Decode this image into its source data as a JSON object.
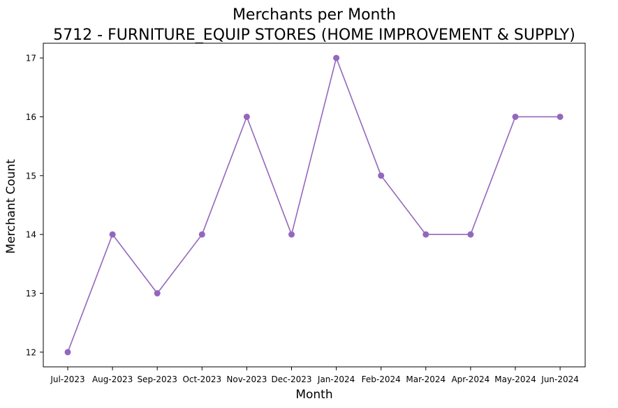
{
  "chart_data": {
    "type": "line",
    "title": "Merchants per Month",
    "subtitle": "5712 - FURNITURE_EQUIP STORES (HOME IMPROVEMENT & SUPPLY)",
    "xlabel": "Month",
    "ylabel": "Merchant Count",
    "categories": [
      "Jul-2023",
      "Aug-2023",
      "Sep-2023",
      "Oct-2023",
      "Nov-2023",
      "Dec-2023",
      "Jan-2024",
      "Feb-2024",
      "Mar-2024",
      "Apr-2024",
      "May-2024",
      "Jun-2024"
    ],
    "values": [
      12,
      14,
      13,
      14,
      16,
      14,
      17,
      15,
      14,
      14,
      16,
      16
    ],
    "yticks": [
      12,
      13,
      14,
      15,
      16,
      17
    ],
    "ylim": [
      11.75,
      17.25
    ],
    "grid": false,
    "color": "#9467bd"
  }
}
